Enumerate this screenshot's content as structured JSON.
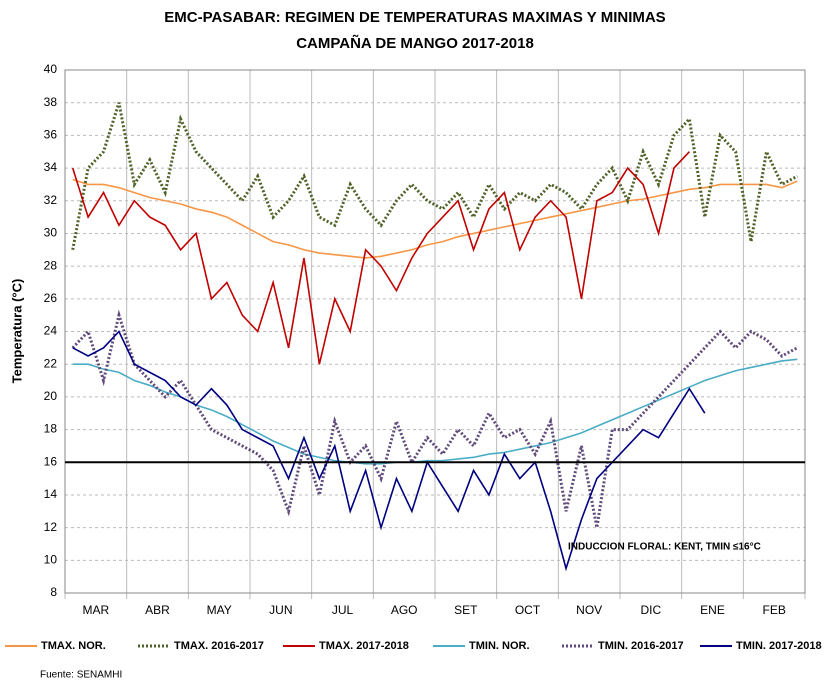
{
  "chart_data": {
    "type": "line",
    "title": "EMC-PASABAR: REGIMEN DE TEMPERATURAS MAXIMAS Y MINIMAS",
    "subtitle": "CAMPAÑA DE MANGO 2017-2018",
    "ylabel": "Temperatura (°C)",
    "source": "Fuente: SENAMHI",
    "annotation": "INDUCCION FLORAL: KENT, TMIN ≤16°C",
    "hline": 16,
    "categories": [
      null,
      null,
      "MAR",
      null,
      null,
      null,
      "ABR",
      null,
      null,
      null,
      "MAY",
      null,
      null,
      null,
      "JUN",
      null,
      null,
      null,
      "JUL",
      null,
      null,
      null,
      "AGO",
      null,
      null,
      null,
      "SET",
      null,
      null,
      null,
      "OCT",
      null,
      null,
      null,
      "NOV",
      null,
      null,
      null,
      "DIC",
      null,
      null,
      null,
      "ENE",
      null,
      null,
      null,
      "FEB",
      null
    ],
    "ylim": [
      8,
      40
    ],
    "yticks": [
      8,
      10,
      12,
      14,
      16,
      18,
      20,
      22,
      24,
      26,
      28,
      30,
      32,
      34,
      36,
      38,
      40
    ],
    "grid": true,
    "series": [
      {
        "name": "TMAX. NOR.",
        "color": "#f79646",
        "dashed": false,
        "values": [
          33.3,
          33,
          33,
          32.8,
          32.5,
          32.2,
          32,
          31.8,
          31.5,
          31.3,
          31,
          30.5,
          30,
          29.5,
          29.3,
          29,
          28.8,
          28.7,
          28.6,
          28.5,
          28.6,
          28.8,
          29,
          29.3,
          29.5,
          29.8,
          30,
          30.2,
          30.4,
          30.6,
          30.8,
          31,
          31.2,
          31.4,
          31.6,
          31.8,
          32,
          32.1,
          32.3,
          32.5,
          32.7,
          32.8,
          33,
          33,
          33,
          33,
          32.8,
          33.2
        ]
      },
      {
        "name": "TMAX. 2016-2017",
        "color": "#4f6228",
        "dashed": true,
        "values": [
          29,
          34,
          35,
          38,
          33,
          34.5,
          32.5,
          37,
          35,
          34,
          33,
          32,
          33.5,
          31,
          32,
          33.5,
          31,
          30.5,
          33,
          31.5,
          30.5,
          32,
          33,
          32,
          31.5,
          32.5,
          31,
          33,
          31.5,
          32.5,
          32,
          33,
          32.5,
          31.5,
          33,
          34,
          32,
          35,
          33,
          36,
          37,
          31,
          36,
          35,
          29.5,
          35,
          33,
          33.5
        ]
      },
      {
        "name": "TMAX. 2017-2018",
        "color": "#c00000",
        "dashed": false,
        "values": [
          34,
          31,
          32.5,
          30.5,
          32,
          31,
          30.5,
          29,
          30,
          26,
          27,
          25,
          24,
          27,
          23,
          28.5,
          22,
          26,
          24,
          29,
          28,
          26.5,
          28.5,
          30,
          31,
          32,
          29,
          31.5,
          32.5,
          29,
          31,
          32,
          31,
          26,
          32,
          32.5,
          34,
          33,
          30,
          34,
          35,
          null,
          null,
          null,
          null,
          null,
          null,
          null
        ]
      },
      {
        "name": "TMIN. NOR.",
        "color": "#4bacc6",
        "dashed": false,
        "values": [
          22,
          22,
          21.7,
          21.5,
          21,
          20.7,
          20.3,
          20,
          19.5,
          19.2,
          18.8,
          18.3,
          17.8,
          17.3,
          16.9,
          16.5,
          16.3,
          16.1,
          16,
          15.9,
          15.9,
          16,
          16,
          16.1,
          16.1,
          16.2,
          16.3,
          16.5,
          16.6,
          16.8,
          17,
          17.2,
          17.5,
          17.8,
          18.2,
          18.6,
          19,
          19.4,
          19.8,
          20.2,
          20.6,
          21,
          21.3,
          21.6,
          21.8,
          22,
          22.2,
          22.3
        ]
      },
      {
        "name": "TMIN. 2016-2017",
        "color": "#604a7b",
        "dashed": true,
        "values": [
          23,
          24,
          21,
          25,
          22,
          21,
          20,
          21,
          19.5,
          18,
          17.5,
          17,
          16.5,
          15.5,
          13,
          17,
          14,
          18.5,
          16,
          17,
          15,
          18.5,
          16,
          17.5,
          16.5,
          18,
          17,
          19,
          17.5,
          18,
          16.5,
          18.5,
          13,
          17,
          12,
          18,
          18,
          19,
          20,
          21,
          22,
          23,
          24,
          23,
          24,
          23.5,
          22.5,
          23
        ]
      },
      {
        "name": "TMIN. 2017-2018",
        "color": "#000080",
        "dashed": false,
        "values": [
          23,
          22.5,
          23,
          24,
          22,
          21.5,
          21,
          20,
          19.5,
          20.5,
          19.5,
          18,
          17.5,
          17,
          15,
          17.5,
          15,
          17,
          13,
          15.5,
          12,
          15,
          13,
          16,
          14.5,
          13,
          15.5,
          14,
          16.5,
          15,
          16,
          13,
          9.5,
          12.5,
          15,
          16,
          17,
          18,
          17.5,
          19,
          20.5,
          19,
          null,
          null,
          null,
          null,
          null,
          null
        ]
      }
    ]
  }
}
